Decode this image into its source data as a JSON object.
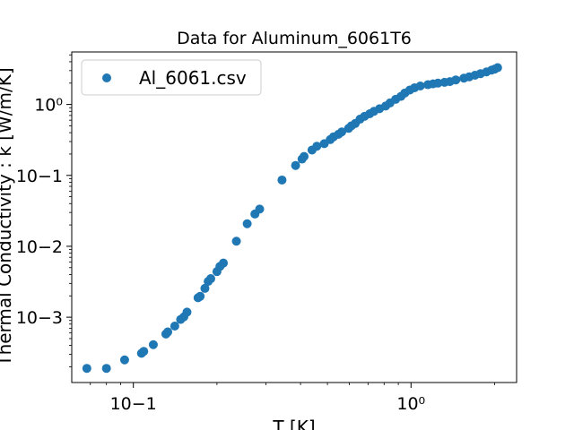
{
  "chart_data": {
    "type": "scatter",
    "title": "Data for Aluminum_6061T6",
    "xlabel": "T [K]",
    "ylabel": "Thermal Conductivity : k [W/m/K]",
    "xscale": "log",
    "yscale": "log",
    "xlim": [
      0.06,
      2.4
    ],
    "ylim": [
      0.00012,
      5.5
    ],
    "grid": false,
    "legend_position": "top-left",
    "x_ticks": [
      {
        "value": 0.1,
        "label": "10−1"
      },
      {
        "value": 1,
        "label": "10⁰"
      }
    ],
    "y_ticks": [
      {
        "value": 0.001,
        "label": "10−3"
      },
      {
        "value": 0.01,
        "label": "10−2"
      },
      {
        "value": 0.1,
        "label": "10−1"
      },
      {
        "value": 1,
        "label": "10⁰"
      }
    ],
    "series": [
      {
        "name": "Al_6061.csv",
        "color": "#1f77b4",
        "points": [
          [
            0.068,
            0.00019
          ],
          [
            0.08,
            0.00019
          ],
          [
            0.093,
            0.00025
          ],
          [
            0.107,
            0.00031
          ],
          [
            0.109,
            0.00033
          ],
          [
            0.118,
            0.00041
          ],
          [
            0.131,
            0.00058
          ],
          [
            0.133,
            0.00062
          ],
          [
            0.141,
            0.00075
          ],
          [
            0.148,
            0.00093
          ],
          [
            0.152,
            0.00101
          ],
          [
            0.156,
            0.00118
          ],
          [
            0.171,
            0.00188
          ],
          [
            0.174,
            0.00197
          ],
          [
            0.181,
            0.00255
          ],
          [
            0.186,
            0.0032
          ],
          [
            0.19,
            0.0035
          ],
          [
            0.2,
            0.0044
          ],
          [
            0.205,
            0.0052
          ],
          [
            0.211,
            0.0058
          ],
          [
            0.235,
            0.0118
          ],
          [
            0.257,
            0.0208
          ],
          [
            0.274,
            0.0285
          ],
          [
            0.285,
            0.0335
          ],
          [
            0.343,
            0.086
          ],
          [
            0.384,
            0.138
          ],
          [
            0.405,
            0.17
          ],
          [
            0.412,
            0.185
          ],
          [
            0.44,
            0.228
          ],
          [
            0.458,
            0.258
          ],
          [
            0.487,
            0.28
          ],
          [
            0.512,
            0.32
          ],
          [
            0.526,
            0.35
          ],
          [
            0.548,
            0.38
          ],
          [
            0.563,
            0.41
          ],
          [
            0.596,
            0.46
          ],
          [
            0.61,
            0.5
          ],
          [
            0.63,
            0.54
          ],
          [
            0.655,
            0.62
          ],
          [
            0.68,
            0.68
          ],
          [
            0.71,
            0.74
          ],
          [
            0.735,
            0.8
          ],
          [
            0.77,
            0.87
          ],
          [
            0.81,
            0.95
          ],
          [
            0.84,
            1.05
          ],
          [
            0.88,
            1.18
          ],
          [
            0.92,
            1.3
          ],
          [
            0.95,
            1.45
          ],
          [
            0.99,
            1.6
          ],
          [
            1.03,
            1.72
          ],
          [
            1.08,
            1.82
          ],
          [
            1.15,
            1.9
          ],
          [
            1.2,
            1.95
          ],
          [
            1.25,
            2.0
          ],
          [
            1.32,
            2.05
          ],
          [
            1.38,
            2.1
          ],
          [
            1.45,
            2.22
          ],
          [
            1.55,
            2.35
          ],
          [
            1.62,
            2.45
          ],
          [
            1.7,
            2.58
          ],
          [
            1.78,
            2.72
          ],
          [
            1.87,
            2.88
          ],
          [
            1.95,
            3.05
          ],
          [
            2.0,
            3.15
          ],
          [
            2.05,
            3.3
          ]
        ]
      }
    ]
  }
}
